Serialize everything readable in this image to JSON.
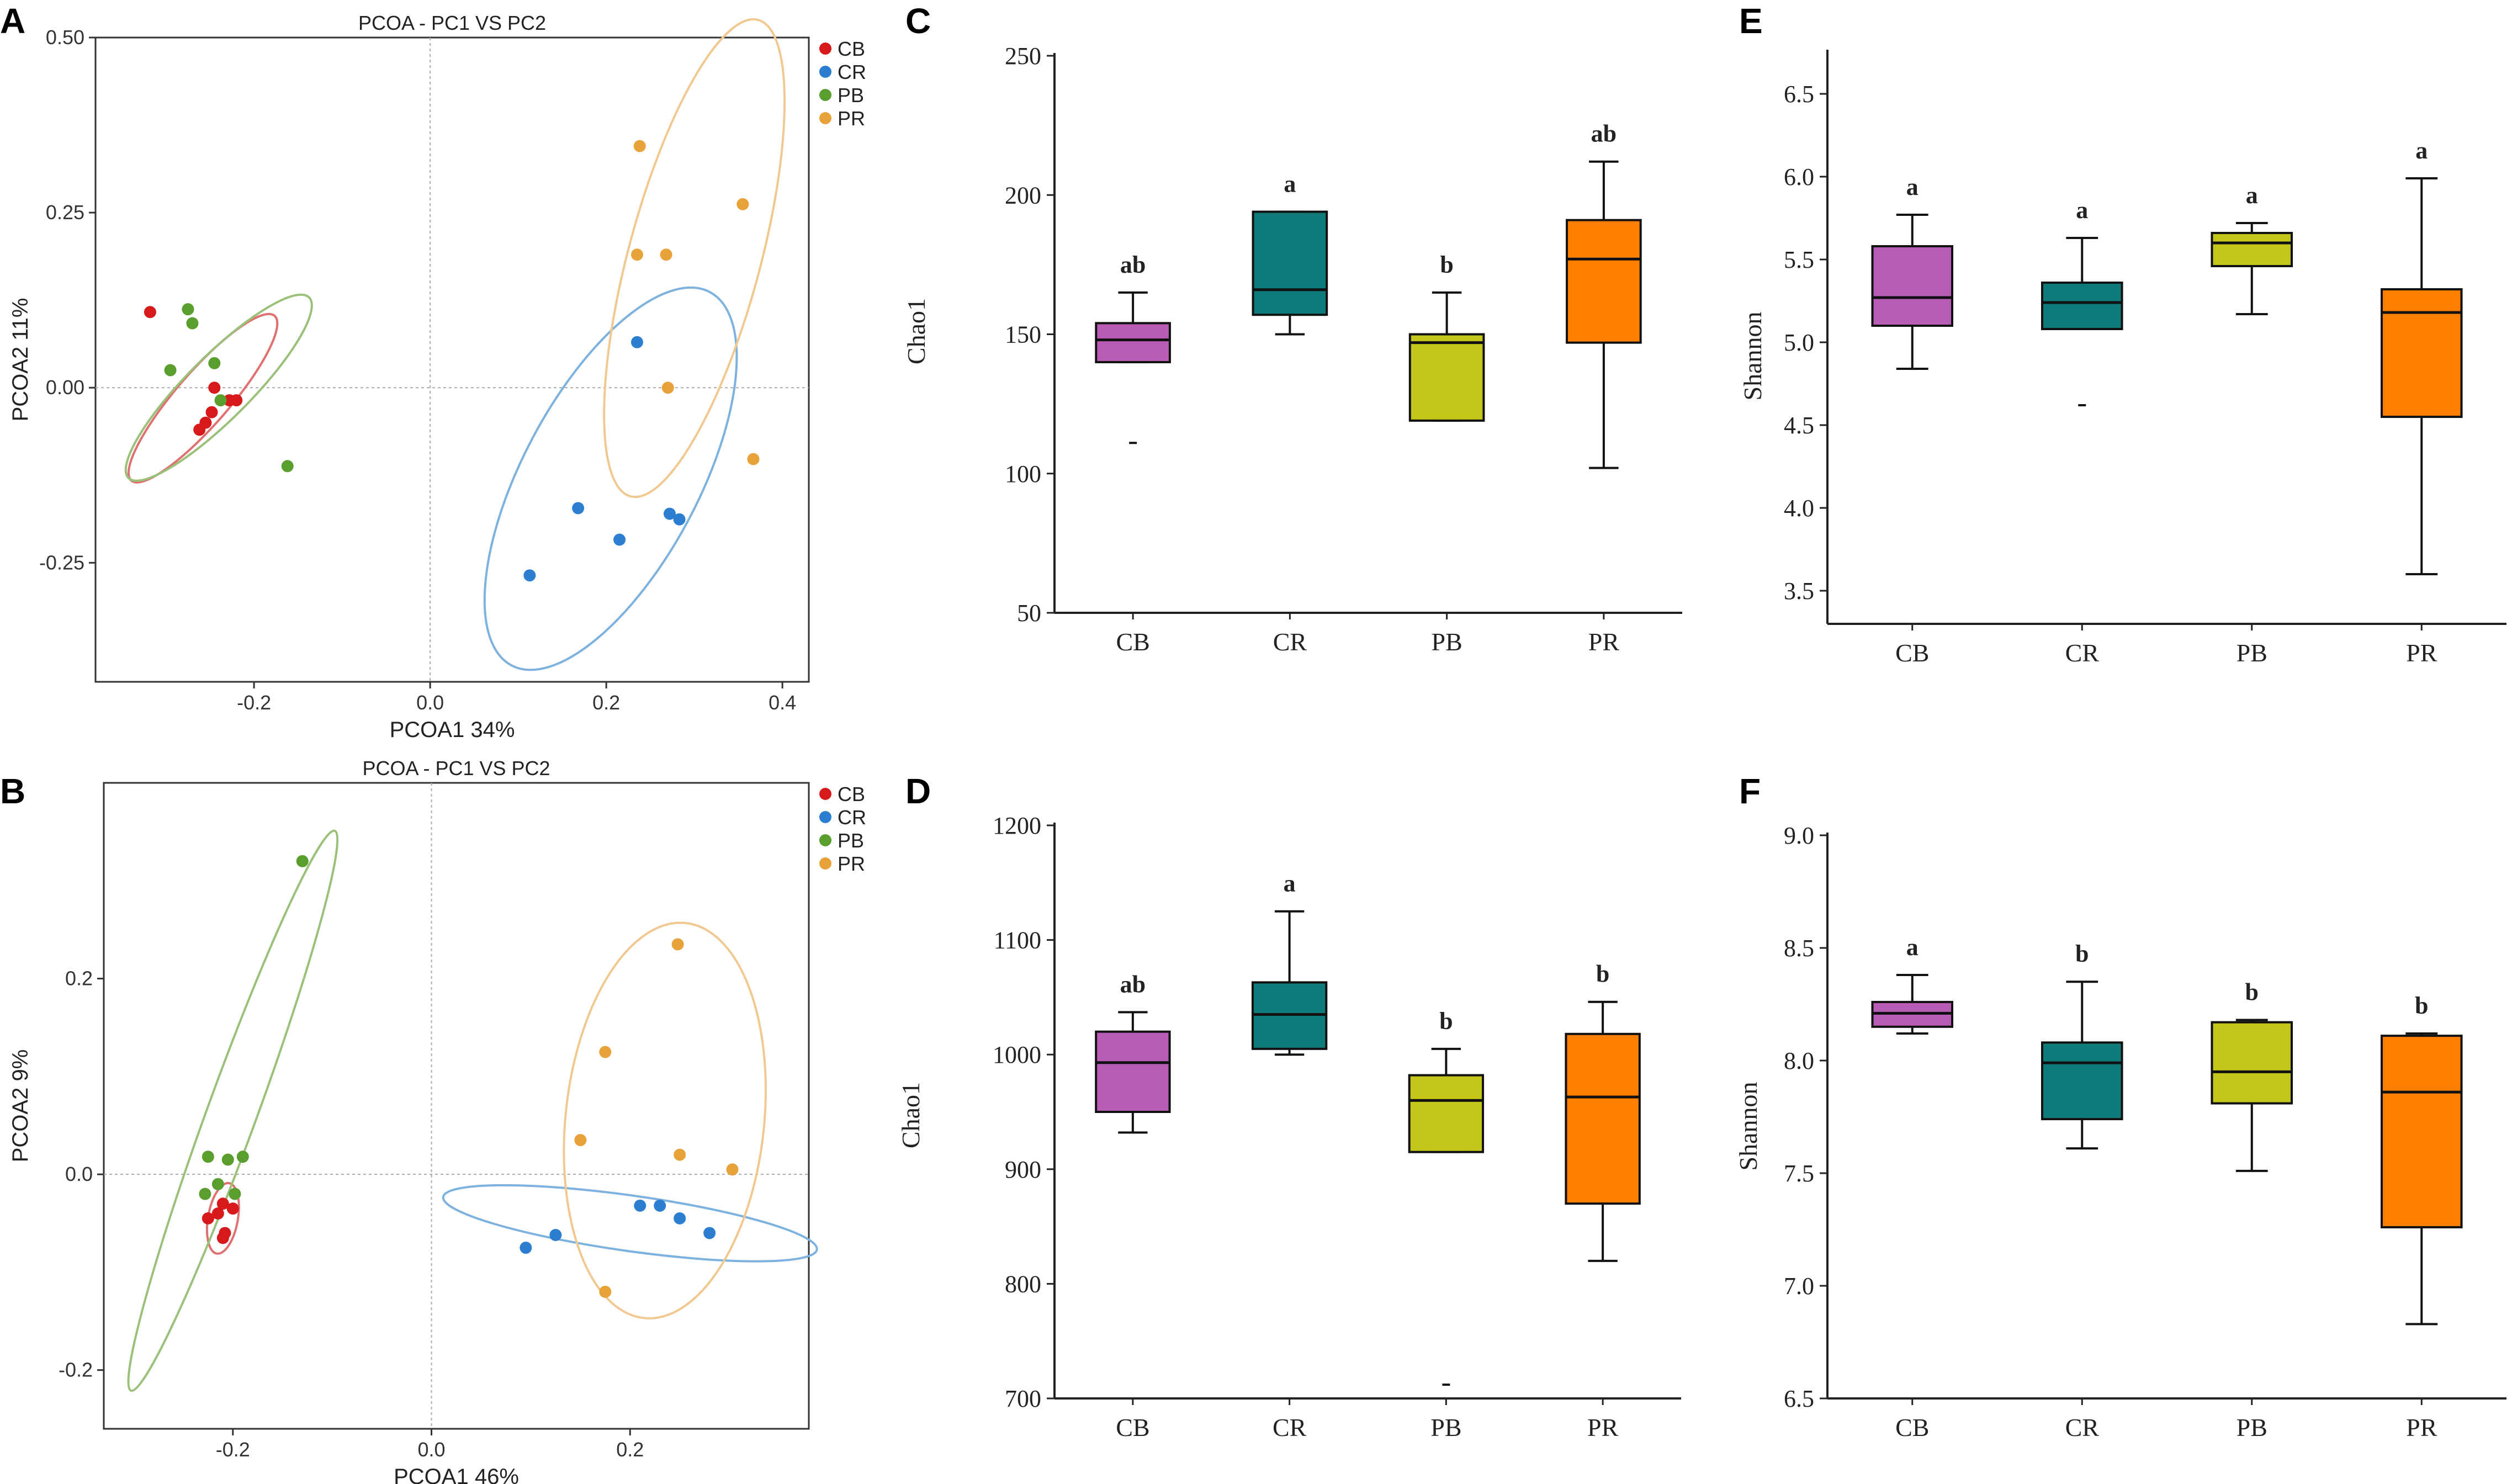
{
  "figure": {
    "colors": {
      "CB": "#d7191c",
      "CR": "#2c7fd0",
      "PB": "#5a9e2f",
      "PR": "#e8a23a"
    },
    "ellipse_colors": {
      "CB": "#e07070",
      "CR": "#7cb2dd",
      "PB": "#9bc07a",
      "PR": "#f0c890"
    },
    "box_colors": {
      "CB": "#b95cb5",
      "CR": "#0f7a7a",
      "PB": "#c4c61a",
      "PR": "#ff8000"
    }
  },
  "chart_data": [
    {
      "id": "A",
      "panel_label": "A",
      "type": "scatter",
      "title": "PCOA - PC1 VS PC2",
      "xlabel": "PCOA1 34%",
      "ylabel": "PCOA2  11%",
      "xlim": [
        -0.38,
        0.43
      ],
      "ylim": [
        -0.42,
        0.5
      ],
      "xticks": [
        -0.2,
        0.0,
        0.2,
        0.4
      ],
      "xtick_labels": [
        "-0.2",
        "0.0",
        "0.2",
        "0.4"
      ],
      "yticks": [
        -0.25,
        0.0,
        0.25,
        0.5
      ],
      "ytick_labels": [
        "-0.25",
        "0.00",
        "0.25",
        "0.50"
      ],
      "legend": [
        "CB",
        "CR",
        "PB",
        "PR"
      ],
      "series": [
        {
          "name": "CB",
          "points": [
            [
              -0.318,
              0.108
            ],
            [
              -0.245,
              0.0
            ],
            [
              -0.228,
              -0.018
            ],
            [
              -0.22,
              -0.018
            ],
            [
              -0.248,
              -0.035
            ],
            [
              -0.255,
              -0.05
            ],
            [
              -0.262,
              -0.06
            ]
          ]
        },
        {
          "name": "CR",
          "points": [
            [
              0.235,
              0.065
            ],
            [
              0.168,
              -0.172
            ],
            [
              0.215,
              -0.217
            ],
            [
              0.272,
              -0.18
            ],
            [
              0.283,
              -0.188
            ],
            [
              0.113,
              -0.268
            ]
          ]
        },
        {
          "name": "PB",
          "points": [
            [
              -0.275,
              0.112
            ],
            [
              -0.27,
              0.092
            ],
            [
              -0.245,
              0.035
            ],
            [
              -0.295,
              0.025
            ],
            [
              -0.238,
              -0.018
            ],
            [
              -0.162,
              -0.112
            ]
          ]
        },
        {
          "name": "PR",
          "points": [
            [
              0.238,
              0.345
            ],
            [
              0.355,
              0.262
            ],
            [
              0.235,
              0.19
            ],
            [
              0.268,
              0.19
            ],
            [
              0.27,
              0.0
            ],
            [
              0.367,
              -0.102
            ]
          ]
        }
      ],
      "ellipses": [
        {
          "name": "CB",
          "cx": -0.258,
          "cy": -0.015,
          "rx": 0.124,
          "ry": 0.03,
          "angle": -49
        },
        {
          "name": "PB",
          "cx": -0.24,
          "cy": 0.0,
          "rx": 0.145,
          "ry": 0.036,
          "angle": -45
        },
        {
          "name": "CR",
          "cx": 0.205,
          "cy": -0.13,
          "rx": 0.24,
          "ry": 0.1,
          "angle": -62
        },
        {
          "name": "PR",
          "cx": 0.3,
          "cy": 0.185,
          "rx": 0.28,
          "ry": 0.075,
          "angle": -75
        }
      ]
    },
    {
      "id": "B",
      "panel_label": "B",
      "type": "scatter",
      "title": "PCOA - PC1 VS PC2",
      "xlabel": "PCOA1 46%",
      "ylabel": "PCOA2  9%",
      "xlim": [
        -0.33,
        0.38
      ],
      "ylim": [
        -0.26,
        0.4
      ],
      "xticks": [
        -0.2,
        0.0,
        0.2
      ],
      "xtick_labels": [
        "-0.2",
        "0.0",
        "0.2"
      ],
      "yticks": [
        -0.2,
        0.0,
        0.2
      ],
      "ytick_labels": [
        "-0.2",
        "0.0",
        "0.2"
      ],
      "legend": [
        "CB",
        "CR",
        "PB",
        "PR"
      ],
      "series": [
        {
          "name": "CB",
          "points": [
            [
              -0.21,
              -0.03
            ],
            [
              -0.2,
              -0.035
            ],
            [
              -0.215,
              -0.04
            ],
            [
              -0.225,
              -0.045
            ],
            [
              -0.208,
              -0.06
            ],
            [
              -0.21,
              -0.065
            ]
          ]
        },
        {
          "name": "CR",
          "points": [
            [
              0.095,
              -0.075
            ],
            [
              0.125,
              -0.062
            ],
            [
              0.21,
              -0.032
            ],
            [
              0.23,
              -0.032
            ],
            [
              0.25,
              -0.045
            ],
            [
              0.28,
              -0.06
            ]
          ]
        },
        {
          "name": "PB",
          "points": [
            [
              -0.13,
              0.32
            ],
            [
              -0.225,
              0.018
            ],
            [
              -0.205,
              0.015
            ],
            [
              -0.19,
              0.018
            ],
            [
              -0.215,
              -0.01
            ],
            [
              -0.228,
              -0.02
            ],
            [
              -0.198,
              -0.02
            ]
          ]
        },
        {
          "name": "PR",
          "points": [
            [
              0.248,
              0.235
            ],
            [
              0.175,
              0.125
            ],
            [
              0.15,
              0.035
            ],
            [
              0.25,
              0.02
            ],
            [
              0.303,
              0.005
            ],
            [
              0.175,
              -0.12
            ]
          ]
        }
      ],
      "ellipses": [
        {
          "name": "CB",
          "cx": -0.21,
          "cy": -0.045,
          "rx": 0.036,
          "ry": 0.015,
          "angle": -80
        },
        {
          "name": "PB",
          "cx": -0.2,
          "cy": 0.065,
          "rx": 0.3,
          "ry": 0.025,
          "angle": -70
        },
        {
          "name": "CR",
          "cx": 0.2,
          "cy": -0.05,
          "rx": 0.19,
          "ry": 0.028,
          "angle": 8
        },
        {
          "name": "PR",
          "cx": 0.235,
          "cy": 0.055,
          "rx": 0.2,
          "ry": 0.1,
          "angle": -84
        }
      ]
    },
    {
      "id": "C",
      "panel_label": "C",
      "type": "box",
      "ylabel": "Chao1",
      "ylim": [
        50,
        250
      ],
      "yticks": [
        50,
        100,
        150,
        200,
        250
      ],
      "ytick_labels": [
        "50",
        "100",
        "150",
        "200",
        "250"
      ],
      "categories": [
        "CB",
        "CR",
        "PB",
        "PR"
      ],
      "boxes": [
        {
          "name": "CB",
          "q1": 140,
          "median": 148,
          "q3": 154,
          "whisker_low": 140,
          "whisker_high": 165,
          "outliers": [
            111
          ],
          "letter": "ab"
        },
        {
          "name": "CR",
          "q1": 157,
          "median": 166,
          "q3": 194,
          "whisker_low": 150,
          "whisker_high": 194,
          "outliers": [],
          "letter": "a"
        },
        {
          "name": "PB",
          "q1": 119,
          "median": 147,
          "q3": 150,
          "whisker_low": 119,
          "whisker_high": 165,
          "outliers": [],
          "letter": "b"
        },
        {
          "name": "PR",
          "q1": 147,
          "median": 177,
          "q3": 191,
          "whisker_low": 102,
          "whisker_high": 212,
          "outliers": [],
          "letter": "ab"
        }
      ]
    },
    {
      "id": "D",
      "panel_label": "D",
      "type": "box",
      "ylabel": "Chao1",
      "ylim": [
        700,
        1200
      ],
      "yticks": [
        700,
        800,
        900,
        1000,
        1100,
        1200
      ],
      "ytick_labels": [
        "700",
        "800",
        "900",
        "1000",
        "1100",
        "1200"
      ],
      "categories": [
        "CB",
        "CR",
        "PB",
        "PR"
      ],
      "boxes": [
        {
          "name": "CB",
          "q1": 950,
          "median": 993,
          "q3": 1020,
          "whisker_low": 932,
          "whisker_high": 1037,
          "outliers": [],
          "letter": "ab"
        },
        {
          "name": "CR",
          "q1": 1005,
          "median": 1035,
          "q3": 1063,
          "whisker_low": 1000,
          "whisker_high": 1125,
          "outliers": [],
          "letter": "a"
        },
        {
          "name": "PB",
          "q1": 915,
          "median": 960,
          "q3": 982,
          "whisker_low": 915,
          "whisker_high": 1005,
          "outliers": [
            712
          ],
          "letter": "b"
        },
        {
          "name": "PR",
          "q1": 870,
          "median": 963,
          "q3": 1018,
          "whisker_low": 820,
          "whisker_high": 1046,
          "outliers": [],
          "letter": "b"
        }
      ]
    },
    {
      "id": "E",
      "panel_label": "E",
      "type": "box",
      "ylabel": "Shannon",
      "ylim": [
        3.3,
        6.75
      ],
      "yticks": [
        3.5,
        4.0,
        4.5,
        5.0,
        5.5,
        6.0,
        6.5
      ],
      "ytick_labels": [
        "3.5",
        "4.0",
        "4.5",
        "5.0",
        "5.5",
        "6.0",
        "6.5"
      ],
      "categories": [
        "CB",
        "CR",
        "PB",
        "PR"
      ],
      "boxes": [
        {
          "name": "CB",
          "q1": 5.1,
          "median": 5.27,
          "q3": 5.58,
          "whisker_low": 4.84,
          "whisker_high": 5.77,
          "outliers": [],
          "letter": "a"
        },
        {
          "name": "CR",
          "q1": 5.08,
          "median": 5.24,
          "q3": 5.36,
          "whisker_low": 5.08,
          "whisker_high": 5.63,
          "outliers": [
            4.62
          ],
          "letter": "a"
        },
        {
          "name": "PB",
          "q1": 5.46,
          "median": 5.6,
          "q3": 5.66,
          "whisker_low": 5.17,
          "whisker_high": 5.72,
          "outliers": [],
          "letter": "a"
        },
        {
          "name": "PR",
          "q1": 4.55,
          "median": 5.18,
          "q3": 5.32,
          "whisker_low": 3.6,
          "whisker_high": 5.99,
          "outliers": [],
          "letter": "a"
        }
      ]
    },
    {
      "id": "F",
      "panel_label": "F",
      "type": "box",
      "ylabel": "Shannon",
      "ylim": [
        6.5,
        9.0
      ],
      "yticks": [
        6.5,
        7.0,
        7.5,
        8.0,
        8.5,
        9.0
      ],
      "ytick_labels": [
        "6.5",
        "7.0",
        "7.5",
        "8.0",
        "8.5",
        "9.0"
      ],
      "categories": [
        "CB",
        "CR",
        "PB",
        "PR"
      ],
      "boxes": [
        {
          "name": "CB",
          "q1": 8.15,
          "median": 8.21,
          "q3": 8.26,
          "whisker_low": 8.12,
          "whisker_high": 8.38,
          "outliers": [],
          "letter": "a"
        },
        {
          "name": "CR",
          "q1": 7.74,
          "median": 7.99,
          "q3": 8.08,
          "whisker_low": 7.61,
          "whisker_high": 8.35,
          "outliers": [],
          "letter": "b"
        },
        {
          "name": "PB",
          "q1": 7.81,
          "median": 7.95,
          "q3": 8.17,
          "whisker_low": 7.51,
          "whisker_high": 8.18,
          "outliers": [],
          "letter": "b"
        },
        {
          "name": "PR",
          "q1": 7.26,
          "median": 7.86,
          "q3": 8.11,
          "whisker_low": 6.83,
          "whisker_high": 8.12,
          "outliers": [],
          "letter": "b"
        }
      ]
    }
  ]
}
